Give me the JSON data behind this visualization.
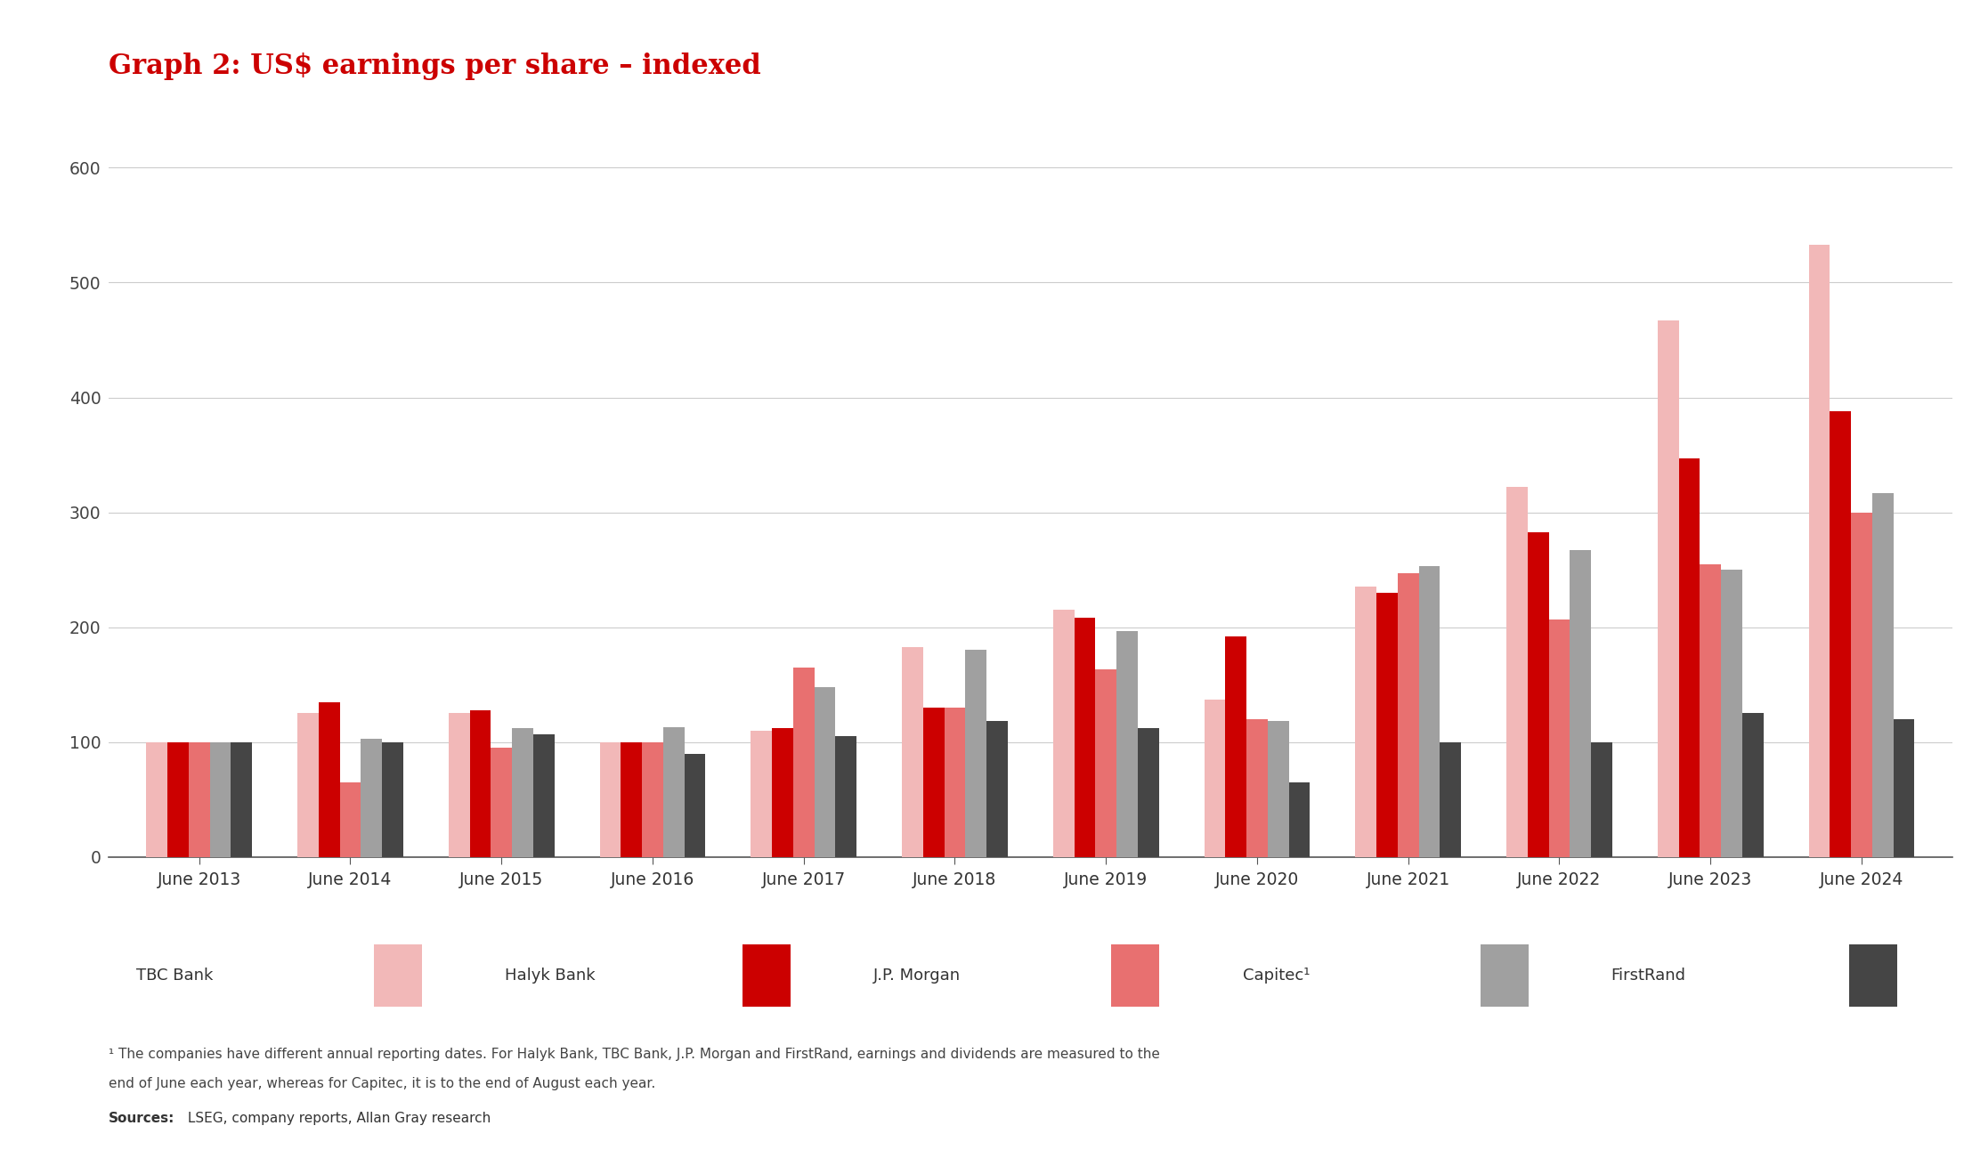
{
  "title": "Graph 2: US$ earnings per share – indexed",
  "title_color": "#cc0000",
  "bg_color": "#ffffff",
  "legend_bg": "#e8e8e8",
  "years": [
    "June 2013",
    "June 2014",
    "June 2015",
    "June 2016",
    "June 2017",
    "June 2018",
    "June 2019",
    "June 2020",
    "June 2021",
    "June 2022",
    "June 2023",
    "June 2024"
  ],
  "series_order": [
    "TBC Bank",
    "Halyk Bank",
    "J.P. Morgan",
    "Capitec",
    "FirstRand"
  ],
  "series": {
    "TBC Bank": [
      100,
      125,
      125,
      100,
      110,
      183,
      215,
      137,
      235,
      322,
      467,
      533
    ],
    "Halyk Bank": [
      100,
      135,
      128,
      100,
      112,
      130,
      208,
      192,
      230,
      283,
      347,
      388
    ],
    "J.P. Morgan": [
      100,
      65,
      95,
      100,
      165,
      130,
      163,
      120,
      247,
      207,
      255,
      300
    ],
    "Capitec": [
      100,
      103,
      112,
      113,
      148,
      180,
      197,
      118,
      253,
      267,
      250,
      317
    ],
    "FirstRand": [
      100,
      100,
      107,
      90,
      105,
      118,
      112,
      65,
      100,
      100,
      125,
      120
    ]
  },
  "colors": {
    "TBC Bank": "#f2b8b8",
    "Halyk Bank": "#cc0000",
    "J.P. Morgan": "#e87070",
    "Capitec": "#a0a0a0",
    "FirstRand": "#454545"
  },
  "ylim": [
    0,
    620
  ],
  "yticks": [
    0,
    100,
    200,
    300,
    400,
    500,
    600
  ],
  "legend_display": [
    "TBC Bank",
    "Halyk Bank",
    "J.P. Morgan",
    "Capitec¹",
    "FirstRand"
  ],
  "legend_keys": [
    "TBC Bank",
    "Halyk Bank",
    "J.P. Morgan",
    "Capitec",
    "FirstRand"
  ],
  "footnote_line1": "¹ The companies have different annual reporting dates. For Halyk Bank, TBC Bank, J.P. Morgan and FirstRand, earnings and dividends are measured to the",
  "footnote_line2": "end of June each year, whereas for Capitec, it is to the end of August each year.",
  "sources_bold": "Sources:",
  "sources_rest": " LSEG, company reports, Allan Gray research"
}
